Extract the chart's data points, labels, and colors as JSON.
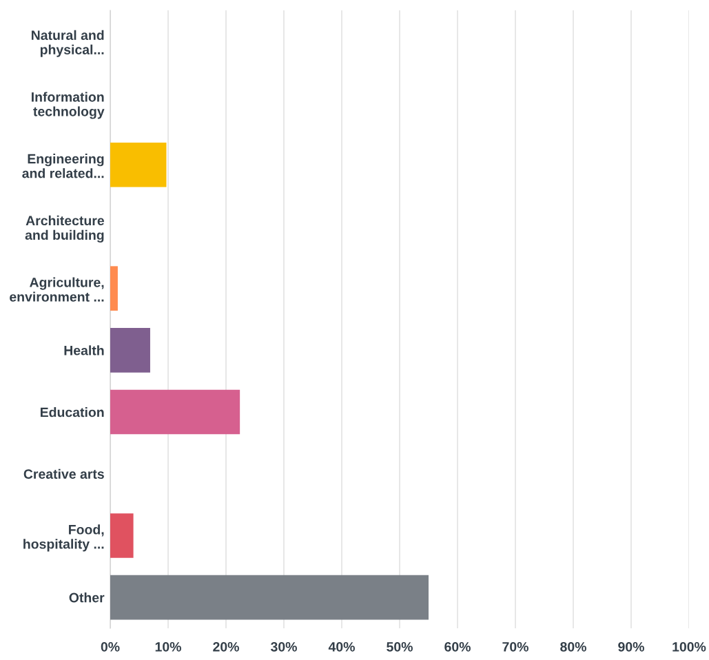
{
  "chart_data": {
    "type": "bar",
    "orientation": "horizontal",
    "categories": [
      "Natural and\nphysical...",
      "Information\ntechnology",
      "Engineering\nand related...",
      "Architecture\nand building",
      "Agriculture,\nenvironment ...",
      "Health",
      "Education",
      "Creative arts",
      "Food,\nhospitality ...",
      "Other"
    ],
    "values": [
      0,
      0,
      9.7,
      0,
      1.3,
      6.9,
      22.4,
      0,
      4.0,
      55.0
    ],
    "colors": [
      "#00bf6f",
      "#507cb6",
      "#f9be00",
      "#6bc8cd",
      "#ff8b4f",
      "#7f5f8f",
      "#d6608f",
      "#2dccd3",
      "#e05260",
      "#7a8087"
    ],
    "xlim": [
      0,
      100
    ],
    "xticks": [
      {
        "value": 0,
        "label": "0%"
      },
      {
        "value": 10,
        "label": "10%"
      },
      {
        "value": 20,
        "label": "20%"
      },
      {
        "value": 30,
        "label": "30%"
      },
      {
        "value": 40,
        "label": "40%"
      },
      {
        "value": 50,
        "label": "50%"
      },
      {
        "value": 60,
        "label": "60%"
      },
      {
        "value": 70,
        "label": "70%"
      },
      {
        "value": 80,
        "label": "80%"
      },
      {
        "value": 90,
        "label": "90%"
      },
      {
        "value": 100,
        "label": "100%"
      }
    ],
    "grid": "x"
  }
}
